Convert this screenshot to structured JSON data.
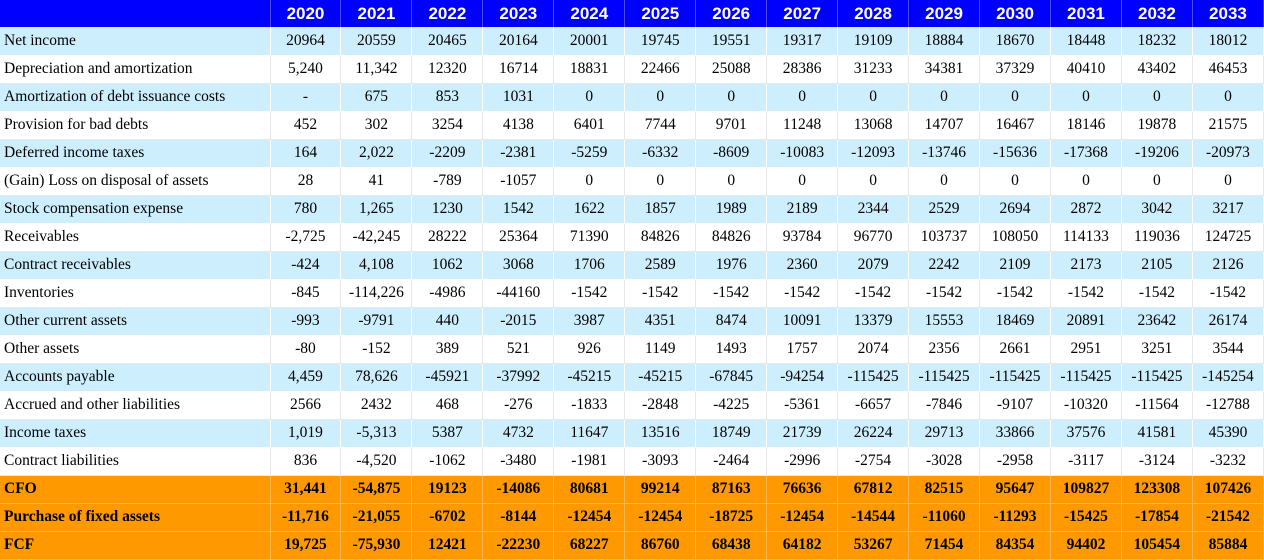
{
  "years": [
    "2020",
    "2021",
    "2022",
    "2023",
    "2024",
    "2025",
    "2026",
    "2027",
    "2028",
    "2029",
    "2030",
    "2031",
    "2032",
    "2033"
  ],
  "rows": [
    {
      "label": "Net income",
      "values": [
        "20964",
        "20559",
        "20465",
        "20164",
        "20001",
        "19745",
        "19551",
        "19317",
        "19109",
        "18884",
        "18670",
        "18448",
        "18232",
        "18012"
      ]
    },
    {
      "label": "Depreciation and amortization",
      "values": [
        "5,240",
        "11,342",
        "12320",
        "16714",
        "18831",
        "22466",
        "25088",
        "28386",
        "31233",
        "34381",
        "37329",
        "40410",
        "43402",
        "46453"
      ]
    },
    {
      "label": "Amortization of debt issuance costs",
      "values": [
        "-",
        "675",
        "853",
        "1031",
        "0",
        "0",
        "0",
        "0",
        "0",
        "0",
        "0",
        "0",
        "0",
        "0"
      ]
    },
    {
      "label": "Provision for bad debts",
      "values": [
        "452",
        "302",
        "3254",
        "4138",
        "6401",
        "7744",
        "9701",
        "11248",
        "13068",
        "14707",
        "16467",
        "18146",
        "19878",
        "21575"
      ]
    },
    {
      "label": "Deferred income taxes",
      "values": [
        "164",
        "2,022",
        "-2209",
        "-2381",
        "-5259",
        "-6332",
        "-8609",
        "-10083",
        "-12093",
        "-13746",
        "-15636",
        "-17368",
        "-19206",
        "-20973"
      ]
    },
    {
      "label": "(Gain) Loss on disposal of assets",
      "values": [
        "28",
        "41",
        "-789",
        "-1057",
        "0",
        "0",
        "0",
        "0",
        "0",
        "0",
        "0",
        "0",
        "0",
        "0"
      ]
    },
    {
      "label": "Stock compensation expense",
      "values": [
        "780",
        "1,265",
        "1230",
        "1542",
        "1622",
        "1857",
        "1989",
        "2189",
        "2344",
        "2529",
        "2694",
        "2872",
        "3042",
        "3217"
      ]
    },
    {
      "label": "Receivables",
      "values": [
        "-2,725",
        "-42,245",
        "28222",
        "25364",
        "71390",
        "84826",
        "84826",
        "93784",
        "96770",
        "103737",
        "108050",
        "114133",
        "119036",
        "124725"
      ]
    },
    {
      "label": "Contract receivables",
      "values": [
        "-424",
        "4,108",
        "1062",
        "3068",
        "1706",
        "2589",
        "1976",
        "2360",
        "2079",
        "2242",
        "2109",
        "2173",
        "2105",
        "2126"
      ]
    },
    {
      "label": "Inventories",
      "values": [
        "-845",
        "-114,226",
        "-4986",
        "-44160",
        "-1542",
        "-1542",
        "-1542",
        "-1542",
        "-1542",
        "-1542",
        "-1542",
        "-1542",
        "-1542",
        "-1542"
      ]
    },
    {
      "label": "Other current assets",
      "values": [
        "-993",
        "-9791",
        "440",
        "-2015",
        "3987",
        "4351",
        "8474",
        "10091",
        "13379",
        "15553",
        "18469",
        "20891",
        "23642",
        "26174"
      ]
    },
    {
      "label": "Other assets",
      "values": [
        "-80",
        "-152",
        "389",
        "521",
        "926",
        "1149",
        "1493",
        "1757",
        "2074",
        "2356",
        "2661",
        "2951",
        "3251",
        "3544"
      ]
    },
    {
      "label": "Accounts payable",
      "values": [
        "4,459",
        "78,626",
        "-45921",
        "-37992",
        "-45215",
        "-45215",
        "-67845",
        "-94254",
        "-115425",
        "-115425",
        "-115425",
        "-115425",
        "-115425",
        "-145254"
      ]
    },
    {
      "label": "Accrued and other liabilities",
      "values": [
        "2566",
        "2432",
        "468",
        "-276",
        "-1833",
        "-2848",
        "-4225",
        "-5361",
        "-6657",
        "-7846",
        "-9107",
        "-10320",
        "-11564",
        "-12788"
      ]
    },
    {
      "label": "Income taxes",
      "values": [
        "1,019",
        "-5,313",
        "5387",
        "4732",
        "11647",
        "13516",
        "18749",
        "21739",
        "26224",
        "29713",
        "33866",
        "37576",
        "41581",
        "45390"
      ]
    },
    {
      "label": "Contract liabilities",
      "values": [
        "836",
        "-4,520",
        "-1062",
        "-3480",
        "-1981",
        "-3093",
        "-2464",
        "-2996",
        "-2754",
        "-3028",
        "-2958",
        "-3117",
        "-3124",
        "-3232"
      ]
    }
  ],
  "totals": [
    {
      "label": "CFO",
      "values": [
        "31,441",
        "-54,875",
        "19123",
        "-14086",
        "80681",
        "99214",
        "87163",
        "76636",
        "67812",
        "82515",
        "95647",
        "109827",
        "123308",
        "107426"
      ]
    },
    {
      "label": "Purchase of fixed assets",
      "values": [
        "-11,716",
        "-21,055",
        "-6702",
        "-8144",
        "-12454",
        "-12454",
        "-18725",
        "-12454",
        "-14544",
        "-11060",
        "-11293",
        "-15425",
        "-17854",
        "-21542"
      ]
    },
    {
      "label": "FCF",
      "values": [
        "19,725",
        "-75,930",
        "12421",
        "-22230",
        "68227",
        "86760",
        "68438",
        "64182",
        "53267",
        "71454",
        "84354",
        "94402",
        "105454",
        "85884"
      ]
    }
  ],
  "colors": {
    "header_bg": "#0000ff",
    "header_text": "#ffffff",
    "row_alt_bg": "#cdeefc",
    "total_bg": "#ff9900"
  }
}
